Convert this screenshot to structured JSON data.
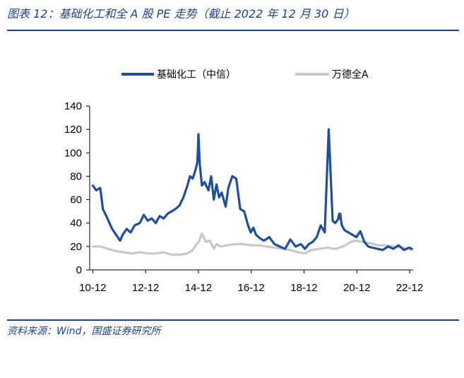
{
  "figure": {
    "title": "图表 12：基础化工和全 A 股 PE 走势（截止 2022 年 12 月 30 日）",
    "source": "资料来源：Wind，国盛证券研究所"
  },
  "chart_data": {
    "type": "line",
    "legend_position": "top",
    "grid": false,
    "ylim": [
      0,
      140
    ],
    "yticks": [
      0,
      20,
      40,
      60,
      80,
      100,
      120,
      140
    ],
    "xlim": [
      2010.8,
      2023.05
    ],
    "xticks": [
      {
        "label": "10-12",
        "x": 2010.917
      },
      {
        "label": "12-12",
        "x": 2012.917
      },
      {
        "label": "14-12",
        "x": 2014.917
      },
      {
        "label": "16-12",
        "x": 2016.917
      },
      {
        "label": "18-12",
        "x": 2018.917
      },
      {
        "label": "20-12",
        "x": 2020.917
      },
      {
        "label": "22-12",
        "x": 2022.917
      }
    ],
    "series": [
      {
        "name": "基础化工（中信）",
        "color": "#1f4e9e",
        "x": [
          2010.92,
          2011.05,
          2011.2,
          2011.3,
          2011.45,
          2011.55,
          2011.65,
          2011.8,
          2011.95,
          2012.05,
          2012.2,
          2012.35,
          2012.5,
          2012.7,
          2012.85,
          2013.0,
          2013.15,
          2013.3,
          2013.45,
          2013.6,
          2013.75,
          2013.9,
          2014.05,
          2014.2,
          2014.35,
          2014.5,
          2014.6,
          2014.7,
          2014.8,
          2014.88,
          2014.92,
          2014.97,
          2015.05,
          2015.15,
          2015.3,
          2015.4,
          2015.5,
          2015.6,
          2015.7,
          2015.8,
          2015.95,
          2016.05,
          2016.2,
          2016.35,
          2016.5,
          2016.65,
          2016.8,
          2016.9,
          2017.0,
          2017.1,
          2017.25,
          2017.4,
          2017.6,
          2017.8,
          2018.0,
          2018.2,
          2018.4,
          2018.6,
          2018.8,
          2018.95,
          2019.1,
          2019.25,
          2019.4,
          2019.55,
          2019.7,
          2019.85,
          2020.0,
          2020.1,
          2020.2,
          2020.25,
          2020.27,
          2020.29,
          2020.32,
          2020.35,
          2020.45,
          2020.6,
          2020.75,
          2020.9,
          2021.05,
          2021.2,
          2021.35,
          2021.5,
          2021.7,
          2021.9,
          2022.1,
          2022.3,
          2022.5,
          2022.7,
          2022.9,
          2023.0
        ],
        "y": [
          72,
          68,
          70,
          52,
          45,
          40,
          35,
          30,
          25,
          30,
          35,
          32,
          38,
          40,
          47,
          42,
          44,
          40,
          46,
          44,
          48,
          50,
          52,
          55,
          62,
          72,
          80,
          78,
          85,
          92,
          116,
          90,
          72,
          75,
          68,
          80,
          60,
          73,
          62,
          66,
          54,
          70,
          80,
          78,
          52,
          50,
          38,
          32,
          36,
          30,
          27,
          25,
          28,
          22,
          20,
          18,
          26,
          20,
          22,
          18,
          22,
          24,
          28,
          38,
          32,
          120,
          42,
          40,
          43,
          48,
          44,
          48,
          42,
          38,
          34,
          32,
          30,
          28,
          33,
          24,
          20,
          19,
          18,
          17,
          20,
          18,
          21,
          17,
          19,
          18
        ],
        "_note": null
      },
      {
        "name": "万德全A",
        "color": "#c8c8c8",
        "x": [
          2010.92,
          2011.2,
          2011.5,
          2011.8,
          2012.1,
          2012.4,
          2012.7,
          2013.0,
          2013.3,
          2013.6,
          2013.9,
          2014.2,
          2014.5,
          2014.7,
          2014.85,
          2014.95,
          2015.05,
          2015.2,
          2015.35,
          2015.5,
          2015.6,
          2015.75,
          2016.0,
          2016.3,
          2016.6,
          2016.9,
          2017.2,
          2017.5,
          2017.8,
          2018.1,
          2018.4,
          2018.7,
          2018.95,
          2019.2,
          2019.5,
          2019.8,
          2020.1,
          2020.4,
          2020.7,
          2020.9,
          2021.1,
          2021.4,
          2021.7,
          2022.0,
          2022.3,
          2022.6,
          2022.9,
          2023.0
        ],
        "y": [
          20,
          20,
          18,
          16,
          15,
          14,
          15,
          14,
          14,
          15,
          13,
          13,
          14,
          17,
          22,
          25,
          31,
          24,
          25,
          18,
          22,
          20,
          21,
          22,
          22,
          21,
          21,
          20,
          19,
          18,
          17,
          15,
          14,
          17,
          18,
          19,
          18,
          20,
          24,
          25,
          24,
          23,
          21,
          21,
          20,
          19,
          18,
          17
        ]
      }
    ]
  }
}
